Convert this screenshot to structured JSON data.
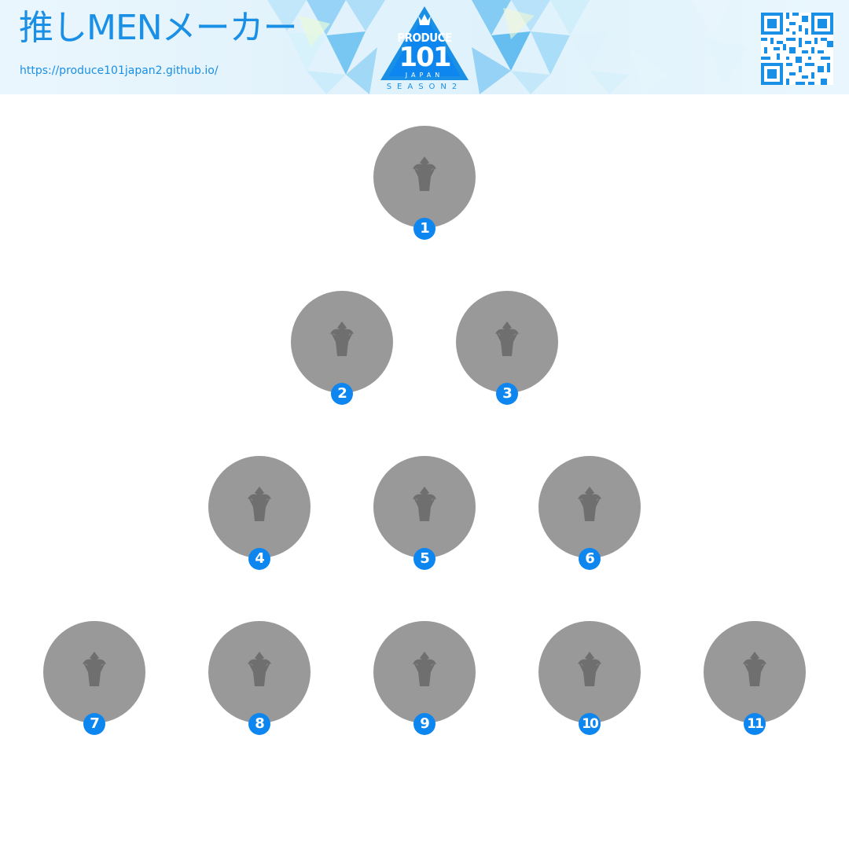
{
  "header": {
    "title": "推しMENメーカー",
    "url": "https://produce101japan2.github.io/",
    "logo": {
      "line1": "PRODUCE",
      "line2": "101",
      "line3": "JAPAN",
      "line4": "SEASON2"
    },
    "qr_icon": "qr-code-icon"
  },
  "colors": {
    "accent": "#1a8fe6",
    "badge": "#0e86f0",
    "slot": "#999999",
    "crown": "#6f6f6f"
  },
  "slots": [
    {
      "rank": "1",
      "icon": "crown-icon"
    },
    {
      "rank": "2",
      "icon": "crown-icon"
    },
    {
      "rank": "3",
      "icon": "crown-icon"
    },
    {
      "rank": "4",
      "icon": "crown-icon"
    },
    {
      "rank": "5",
      "icon": "crown-icon"
    },
    {
      "rank": "6",
      "icon": "crown-icon"
    },
    {
      "rank": "7",
      "icon": "crown-icon"
    },
    {
      "rank": "8",
      "icon": "crown-icon"
    },
    {
      "rank": "9",
      "icon": "crown-icon"
    },
    {
      "rank": "10",
      "icon": "crown-icon"
    },
    {
      "rank": "11",
      "icon": "crown-icon"
    }
  ]
}
